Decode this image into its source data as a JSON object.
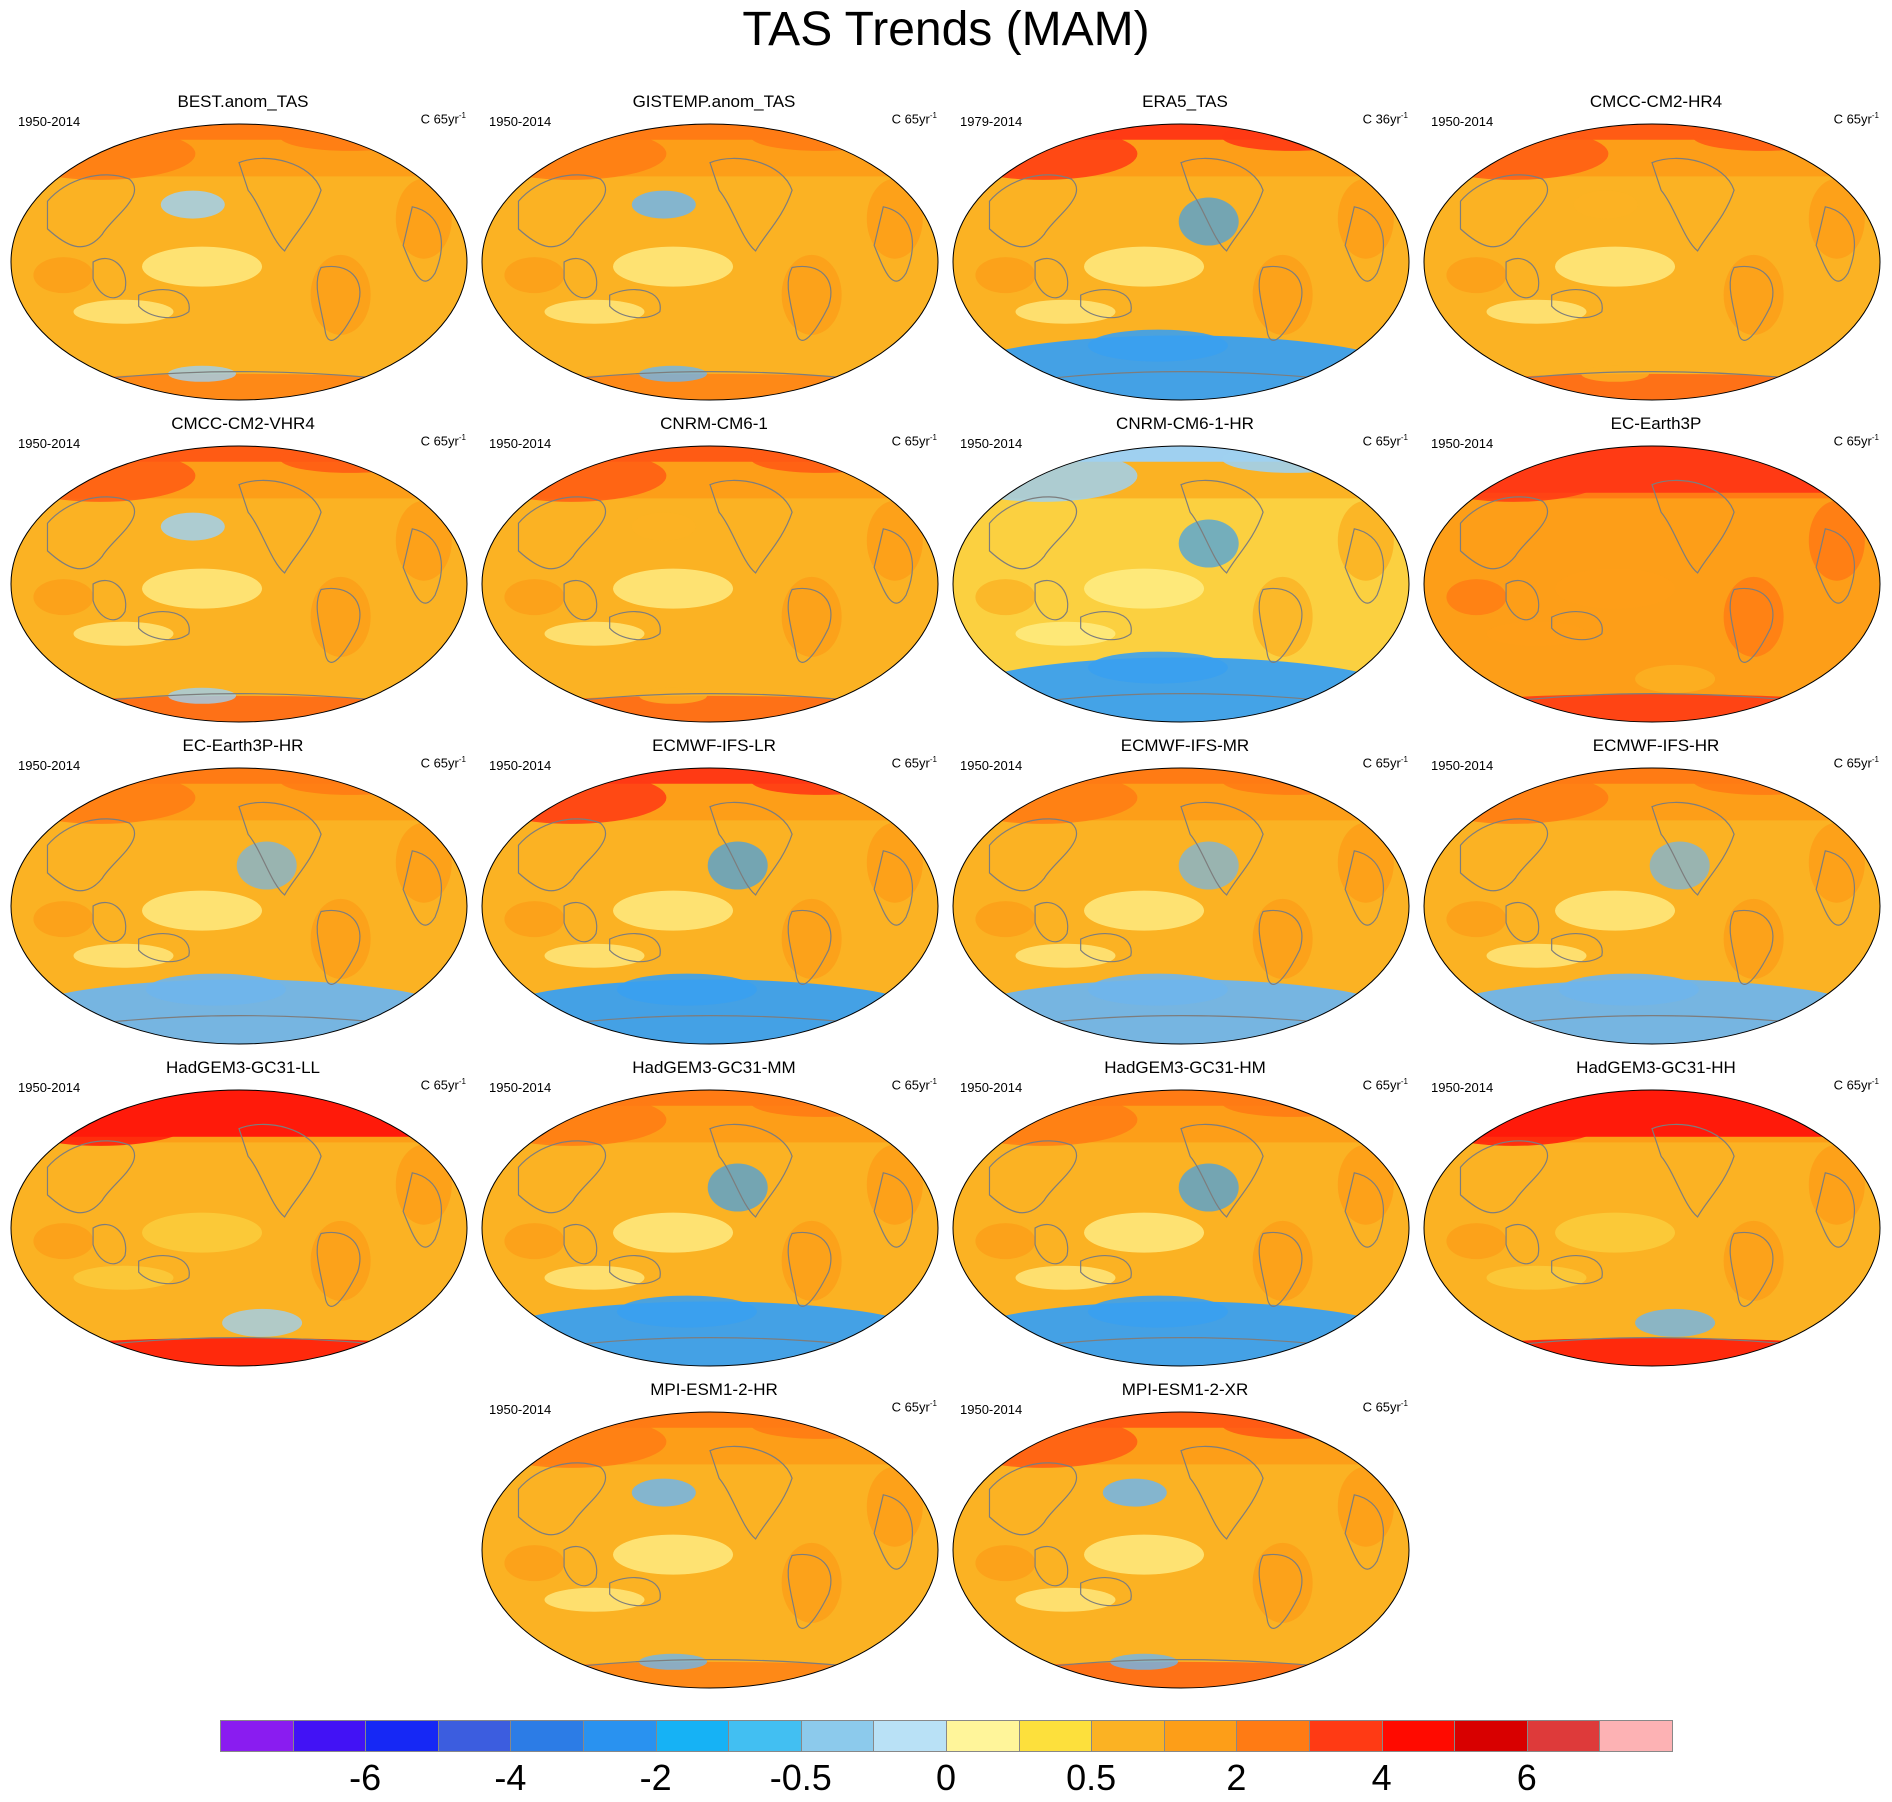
{
  "title": "TAS Trends (MAM)",
  "panels": [
    {
      "name": "BEST.anom_TAS",
      "period": "1950-2014",
      "units": "C 65yr",
      "units_exp": "-1",
      "pattern": "warm",
      "colors": [
        "#fbb223",
        "#fd9e18",
        "#ff7b14",
        "#9fd0f0",
        "#fff28e"
      ]
    },
    {
      "name": "GISTEMP.anom_TAS",
      "period": "1950-2014",
      "units": "C 65yr",
      "units_exp": "-1",
      "pattern": "warm",
      "colors": [
        "#fbb223",
        "#fd9e18",
        "#ff7b14",
        "#6fb5ec",
        "#fff28e"
      ]
    },
    {
      "name": "ERA5_TAS",
      "period": "1979-2014",
      "units": "C 36yr",
      "units_exp": "-1",
      "pattern": "cool-south",
      "colors": [
        "#fbb223",
        "#fd9e18",
        "#ff3a14",
        "#3aa0f0",
        "#fff28e"
      ]
    },
    {
      "name": "CMCC-CM2-HR4",
      "period": "1950-2014",
      "units": "C 65yr",
      "units_exp": "-1",
      "pattern": "warm",
      "colors": [
        "#fbb223",
        "#fd9e18",
        "#ff5b14",
        "#fbb223",
        "#fff28e"
      ]
    },
    {
      "name": "CMCC-CM2-VHR4",
      "period": "1950-2014",
      "units": "C 65yr",
      "units_exp": "-1",
      "pattern": "warm",
      "colors": [
        "#fbb223",
        "#fd9e18",
        "#ff5b14",
        "#9fd0f0",
        "#fff28e"
      ]
    },
    {
      "name": "CNRM-CM6-1",
      "period": "1950-2014",
      "units": "C 65yr",
      "units_exp": "-1",
      "pattern": "warm",
      "colors": [
        "#fbb223",
        "#fd9e18",
        "#ff5b14",
        "#fbb223",
        "#fff28e"
      ]
    },
    {
      "name": "CNRM-CM6-1-HR",
      "period": "1950-2014",
      "units": "C 65yr",
      "units_exp": "-1",
      "pattern": "cool-south",
      "colors": [
        "#fbd040",
        "#fbb223",
        "#9fd0f0",
        "#3aa0f0",
        "#fff28e"
      ]
    },
    {
      "name": "EC-Earth3P",
      "period": "1950-2014",
      "units": "C 65yr",
      "units_exp": "-1",
      "pattern": "hot",
      "colors": [
        "#fd9e18",
        "#ff7b14",
        "#ff3a14",
        "#fbb223",
        "#fd9e18"
      ]
    },
    {
      "name": "EC-Earth3P-HR",
      "period": "1950-2014",
      "units": "C 65yr",
      "units_exp": "-1",
      "pattern": "cool-south",
      "colors": [
        "#fbb223",
        "#fd9e18",
        "#ff7b14",
        "#6fb5ec",
        "#fff28e"
      ]
    },
    {
      "name": "ECMWF-IFS-LR",
      "period": "1950-2014",
      "units": "C 65yr",
      "units_exp": "-1",
      "pattern": "cool-south",
      "colors": [
        "#fbb223",
        "#fd9e18",
        "#ff3a14",
        "#3aa0f0",
        "#fff28e"
      ]
    },
    {
      "name": "ECMWF-IFS-MR",
      "period": "1950-2014",
      "units": "C 65yr",
      "units_exp": "-1",
      "pattern": "cool-south",
      "colors": [
        "#fbb223",
        "#fd9e18",
        "#ff7b14",
        "#6fb5ec",
        "#fff28e"
      ]
    },
    {
      "name": "ECMWF-IFS-HR",
      "period": "1950-2014",
      "units": "C 65yr",
      "units_exp": "-1",
      "pattern": "cool-south",
      "colors": [
        "#fbb223",
        "#fd9e18",
        "#ff7b14",
        "#6fb5ec",
        "#fff28e"
      ]
    },
    {
      "name": "HadGEM3-GC31-LL",
      "period": "1950-2014",
      "units": "C 65yr",
      "units_exp": "-1",
      "pattern": "hot",
      "colors": [
        "#fbb223",
        "#fd9e18",
        "#ff1a0a",
        "#9fd0f0",
        "#fbd040"
      ]
    },
    {
      "name": "HadGEM3-GC31-MM",
      "period": "1950-2014",
      "units": "C 65yr",
      "units_exp": "-1",
      "pattern": "cool-south",
      "colors": [
        "#fbb223",
        "#fd9e18",
        "#ff7b14",
        "#3aa0f0",
        "#fff28e"
      ]
    },
    {
      "name": "HadGEM3-GC31-HM",
      "period": "1950-2014",
      "units": "C 65yr",
      "units_exp": "-1",
      "pattern": "cool-south",
      "colors": [
        "#fbb223",
        "#fd9e18",
        "#ff7b14",
        "#3aa0f0",
        "#fff28e"
      ]
    },
    {
      "name": "HadGEM3-GC31-HH",
      "period": "1950-2014",
      "units": "C 65yr",
      "units_exp": "-1",
      "pattern": "hot",
      "colors": [
        "#fbb223",
        "#fd9e18",
        "#ff1a0a",
        "#6fb5ec",
        "#fbd040"
      ]
    },
    {
      "name": "MPI-ESM1-2-HR",
      "period": "1950-2014",
      "units": "C 65yr",
      "units_exp": "-1",
      "pattern": "warm",
      "colors": [
        "#fbb223",
        "#fd9e18",
        "#ff7b14",
        "#6fb5ec",
        "#fff28e"
      ]
    },
    {
      "name": "MPI-ESM1-2-XR",
      "period": "1950-2014",
      "units": "C 65yr",
      "units_exp": "-1",
      "pattern": "warm",
      "colors": [
        "#fbb223",
        "#fd9e18",
        "#ff5b14",
        "#6fb5ec",
        "#fff28e"
      ]
    }
  ],
  "colorbar": {
    "colors": [
      "#8a1cf0",
      "#4212f5",
      "#1628f5",
      "#3c5ddf",
      "#2c7ce6",
      "#2992f0",
      "#16b2f5",
      "#42bff2",
      "#8ccaec",
      "#b9e1f6",
      "#fff59a",
      "#fde03c",
      "#fbb223",
      "#fd9e18",
      "#ff7b14",
      "#ff3a14",
      "#ff0a00",
      "#d80000",
      "#de3a3a",
      "#fdb2b4"
    ],
    "labels": [
      {
        "text": "-6",
        "after_box": 2
      },
      {
        "text": "-4",
        "after_box": 4
      },
      {
        "text": "-2",
        "after_box": 6
      },
      {
        "text": "-0.5",
        "after_box": 8
      },
      {
        "text": "0",
        "after_box": 10
      },
      {
        "text": "0.5",
        "after_box": 12
      },
      {
        "text": "2",
        "after_box": 14
      },
      {
        "text": "4",
        "after_box": 16
      },
      {
        "text": "6",
        "after_box": 18
      }
    ]
  }
}
